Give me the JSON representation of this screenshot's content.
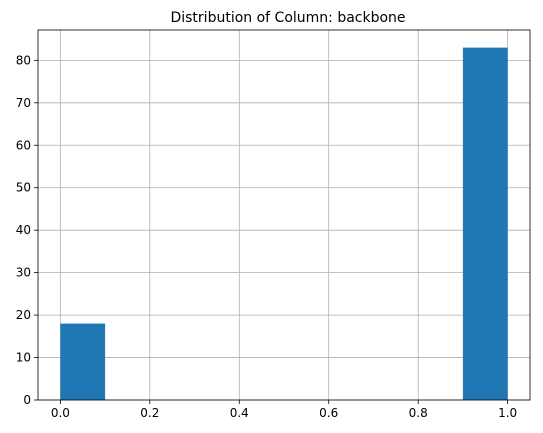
{
  "chart_data": {
    "type": "bar",
    "title": "Distribution of Column: backbone",
    "xlabel": "",
    "ylabel": "",
    "grid": true,
    "bar_color": "#1f77b4",
    "grid_color": "#b0b0b0",
    "xlim": [
      -0.05,
      1.05
    ],
    "ylim": [
      0,
      87.15
    ],
    "xticks": [
      0.0,
      0.2,
      0.4,
      0.6,
      0.8,
      1.0
    ],
    "xtick_labels": [
      "0.0",
      "0.2",
      "0.4",
      "0.6",
      "0.8",
      "1.0"
    ],
    "yticks": [
      0,
      10,
      20,
      30,
      40,
      50,
      60,
      70,
      80
    ],
    "ytick_labels": [
      "0",
      "10",
      "20",
      "30",
      "40",
      "50",
      "60",
      "70",
      "80"
    ],
    "bins": [
      {
        "x0": 0.0,
        "x1": 0.1,
        "count": 18
      },
      {
        "x0": 0.1,
        "x1": 0.2,
        "count": 0
      },
      {
        "x0": 0.2,
        "x1": 0.3,
        "count": 0
      },
      {
        "x0": 0.3,
        "x1": 0.4,
        "count": 0
      },
      {
        "x0": 0.4,
        "x1": 0.5,
        "count": 0
      },
      {
        "x0": 0.5,
        "x1": 0.6,
        "count": 0
      },
      {
        "x0": 0.6,
        "x1": 0.7,
        "count": 0
      },
      {
        "x0": 0.7,
        "x1": 0.8,
        "count": 0
      },
      {
        "x0": 0.8,
        "x1": 0.9,
        "count": 0
      },
      {
        "x0": 0.9,
        "x1": 1.0,
        "count": 83
      }
    ]
  }
}
